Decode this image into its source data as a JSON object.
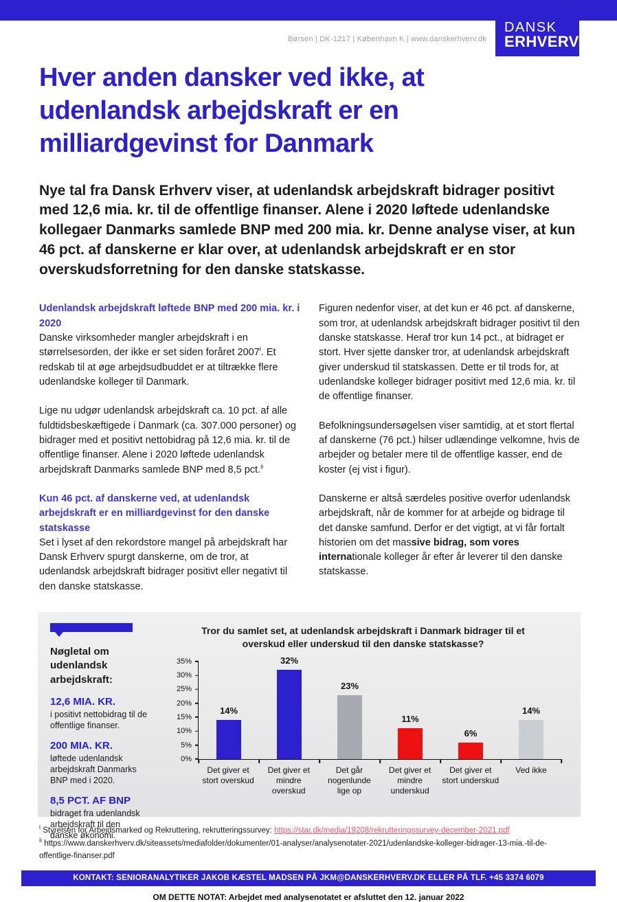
{
  "header": {
    "address": "Børsen | DK-1217 | København K | www.danskerhverv.dk",
    "logo_line1": "DANSK",
    "logo_line2": "ERHVERV"
  },
  "title_lines": [
    "Hver anden dansker ved ikke, at",
    "udenlandsk arbejdskraft er en",
    "milliardgevinst for Danmark"
  ],
  "intro": "Nye tal fra Dansk Erhverv viser, at udenlandsk arbejdskraft bidrager positivt med 12,6 mia. kr. til de offentlige finanser. Alene i 2020 løftede udenlandske kollegaer Danmarks samlede BNP med 200 mia. kr. Denne analyse viser, at kun 46 pct. af danskerne er klar over, at udenlandsk arbejdskraft er en stor overskudsforretning for den danske statskasse.",
  "left_column": {
    "heading1": "Udenlandsk arbejdskraft løftede BNP med 200 mia. kr. i 2020",
    "para1_pre": "Danske virksomheder mangler arbejdskraft i en størrelsesorden, der ikke er set siden foråret 2007",
    "para1_sup": "i",
    "para1_post": ". Et redskab til at øge arbejdsudbuddet er at tiltrække flere udenlandske kolleger til Danmark.",
    "para2_pre": "Lige nu udgør udenlandsk arbejdskraft ca. 10 pct. af alle fuldtidsbeskæftigede i Danmark (ca. 307.000 personer) og bidrager med et positivt nettobidrag på 12,6 mia. kr. til de offentlige finanser. Alene i 2020 løftede udenlandsk arbejdskraft Danmarks samlede BNP med 8,5 pct.",
    "para2_sup": "ii",
    "heading2": "Kun 46 pct. af danskerne ved, at udenlandsk arbejdskraft er en milliardgevinst for den danske statskasse",
    "para3": "Set i lyset af den rekordstore mangel på arbejdskraft har Dansk Erhverv spurgt danskerne, om de tror, at udenlandsk arbejdskraft bidrager positivt eller negativt til den danske statskasse."
  },
  "right_column": {
    "para1": "Figuren nedenfor viser, at det kun er 46 pct. af danskerne, som tror, at udenlandsk arbejdskraft bidrager positivt til den danske statskasse. Heraf tror kun 14 pct., at bidraget er stort. Hver sjette dansker tror, at udenlandsk arbejdskraft giver underskud til statskassen. Dette er til trods for, at udenlandske kolleger bidrager positivt med 12,6 mia. kr. til de offentlige finanser.",
    "para2": "Befolkningsundersøgelsen viser samtidig, at et stort flertal af danskerne (76 pct.) hilser udlændinge velkomne, hvis de arbejder og betaler mere til de offentlige kasser, end de koster (ej vist i figur).",
    "para3_pre": "Danskerne er altså særdeles positive overfor udenlandsk arbejdskraft, når de kommer for at arbejde og bidrage til det danske samfund. Derfor er det vigtigt, at vi får fortalt historien om det mas",
    "para3_bold": "sive bidrag, som vores interna",
    "para3_post": "tionale kolleger år efter år leverer til den danske statskasse."
  },
  "figure_box": {
    "sidebar": {
      "heading": "Nøgletal om udenlandsk arbejdskraft:",
      "items": [
        {
          "value": "12,6 MIA. KR.",
          "desc": "i positivt nettobidrag til de offentlige finanser."
        },
        {
          "value": "200 MIA. KR.",
          "desc": "løftede udenlandsk arbejdskraft Danmarks BNP med i 2020."
        },
        {
          "value": "8,5 PCT. AF BNP",
          "desc": "bidraget fra udenlandsk arbejdskraft til den danske økonomi."
        }
      ]
    }
  },
  "chart_data": {
    "type": "bar",
    "title": "Tror du samlet set, at udenlandsk arbejdskraft i Danmark bidrager til et overskud eller underskud til den danske statskasse?",
    "categories": [
      "Det giver et stort overskud",
      "Det giver et mindre overskud",
      "Det går nogenlunde lige op",
      "Det giver et mindre underskud",
      "Det giver et stort underskud",
      "Ved ikke"
    ],
    "values": [
      14,
      32,
      23,
      11,
      6,
      14
    ],
    "data_labels": [
      "14%",
      "32%",
      "23%",
      "11%",
      "6%",
      "14%"
    ],
    "bar_colors": [
      "#2c20cf",
      "#2c20cf",
      "#a7abb1",
      "#ee1111",
      "#ee1111",
      "#c9ced3"
    ],
    "xlabel": "",
    "ylabel": "",
    "ylim": [
      0,
      35
    ],
    "yticks": [
      "0%",
      "5%",
      "10%",
      "15%",
      "20%",
      "25%",
      "30%",
      "35%"
    ],
    "grid": false,
    "legend_position": "none"
  },
  "footnotes": {
    "i_marker": "i",
    "i_text": "Styrelsen for Arbejdsmarked og Rekruttering, rekrutteringssurvey: ",
    "i_link": "https://star.dk/media/19208/rekrutteringssurvey-december-2021.pdf",
    "ii_marker": "ii",
    "ii_text": "https://www.danskerhverv.dk/siteassets/mediafolder/dokumenter/01-analyser/analysenotater-2021/udenlandske-kolleger-bidrager-13-mia.-til-de-offentlige-finanser.pdf"
  },
  "footer": {
    "contact": "KONTAKT: SENIORANALYTIKER JAKOB KÆSTEL MADSEN PÅ JKM@DANSKERHVERV.DK ELLER PÅ TLF. +45 3374 6079",
    "about": "OM DETTE NOTAT: Arbejdet med analysenotatet er afsluttet den 12. januar 2022"
  },
  "colors": {
    "brand_blue": "#2c20cf",
    "heading_blue": "#4038d4",
    "accent_red": "#ee1111",
    "gray_bar_dark": "#a7abb1",
    "gray_bar_light": "#c9ced3",
    "link_red": "#f4566b"
  }
}
